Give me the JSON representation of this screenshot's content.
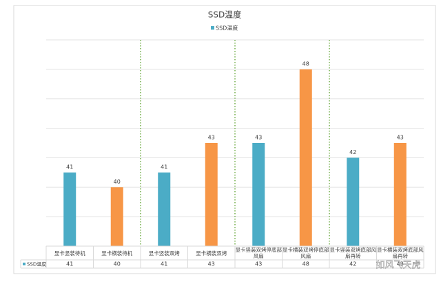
{
  "chart_data": {
    "type": "bar",
    "title": "SSD温度",
    "categories": [
      "显卡竖装待机",
      "显卡横装待机",
      "显卡竖装双烤",
      "显卡横装双烤",
      "显卡竖装双烤停底部风扇",
      "显卡横装双烤停底部风扇",
      "显卡竖装双烤底部风扇再转",
      "显卡横装双烤底部风扇再转"
    ],
    "series": [
      {
        "name": "SSD温度",
        "color": "#4bacc6",
        "values": [
          41,
          40,
          41,
          43,
          43,
          48,
          42,
          43
        ],
        "colors": [
          "#4bacc6",
          "#f79646",
          "#4bacc6",
          "#f79646",
          "#4bacc6",
          "#f79646",
          "#4bacc6",
          "#f79646"
        ]
      }
    ],
    "ylim": [
      36,
      50
    ],
    "yticks": [
      36,
      38,
      40,
      42,
      44,
      46,
      48,
      50
    ],
    "grid": true,
    "legend": "top",
    "data_table": true,
    "watermark": "如风飞天虎"
  }
}
